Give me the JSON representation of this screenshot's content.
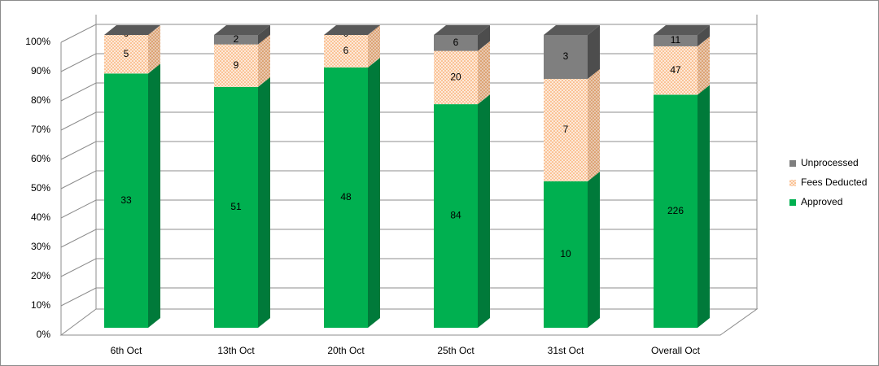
{
  "chart_data": {
    "type": "stacked-bar-3d",
    "stacking": "percent",
    "categories": [
      "6th Oct",
      "13th Oct",
      "20th Oct",
      "25th Oct",
      "31st Oct",
      "Overall Oct"
    ],
    "series": [
      {
        "name": "Approved",
        "color": "#00b050",
        "values": [
          33,
          51,
          48,
          84,
          10,
          226
        ]
      },
      {
        "name": "Fees Deducted",
        "color": "#f79646",
        "values": [
          5,
          9,
          6,
          20,
          7,
          47
        ]
      },
      {
        "name": "Unprocessed",
        "color": "#7f7f7f",
        "values": [
          0,
          2,
          0,
          6,
          3,
          11
        ]
      }
    ],
    "ylim": [
      0,
      100
    ],
    "yticks": [
      {
        "value": 0,
        "label": "0%"
      },
      {
        "value": 10,
        "label": "10%"
      },
      {
        "value": 20,
        "label": "20%"
      },
      {
        "value": 30,
        "label": "30%"
      },
      {
        "value": 40,
        "label": "40%"
      },
      {
        "value": 50,
        "label": "50%"
      },
      {
        "value": 60,
        "label": "60%"
      },
      {
        "value": 70,
        "label": "70%"
      },
      {
        "value": 80,
        "label": "80%"
      },
      {
        "value": 90,
        "label": "90%"
      },
      {
        "value": 100,
        "label": "100%"
      }
    ],
    "grid": true,
    "legend": "right"
  }
}
